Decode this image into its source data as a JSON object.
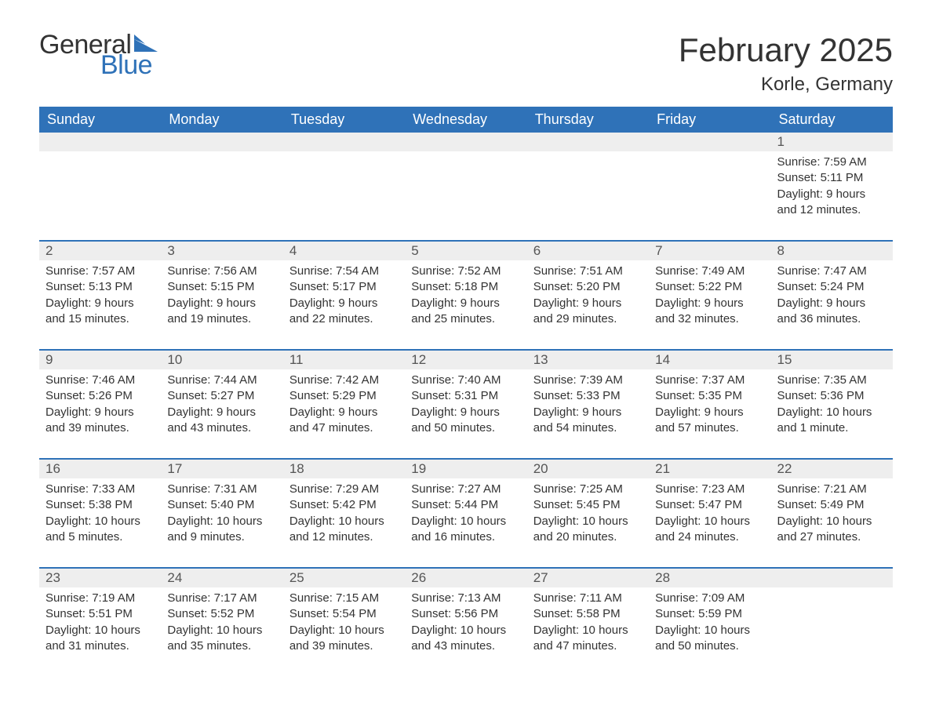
{
  "logo": {
    "word1": "General",
    "word2": "Blue",
    "tri_color": "#2f72b8",
    "text_color": "#333333"
  },
  "header": {
    "title": "February 2025",
    "location": "Korle, Germany"
  },
  "colors": {
    "header_bg": "#2f72b8",
    "header_fg": "#ffffff",
    "daynum_bg": "#eeeeee",
    "row_border": "#2f72b8",
    "text": "#333333",
    "background": "#ffffff"
  },
  "typography": {
    "title_fontsize": 42,
    "location_fontsize": 24,
    "dayheader_fontsize": 18,
    "daynum_fontsize": 17,
    "body_fontsize": 15,
    "font_family": "Segoe UI"
  },
  "day_headers": [
    "Sunday",
    "Monday",
    "Tuesday",
    "Wednesday",
    "Thursday",
    "Friday",
    "Saturday"
  ],
  "weeks": [
    [
      null,
      null,
      null,
      null,
      null,
      null,
      {
        "n": "1",
        "sunrise": "7:59 AM",
        "sunset": "5:11 PM",
        "daylight": "9 hours and 12 minutes."
      }
    ],
    [
      {
        "n": "2",
        "sunrise": "7:57 AM",
        "sunset": "5:13 PM",
        "daylight": "9 hours and 15 minutes."
      },
      {
        "n": "3",
        "sunrise": "7:56 AM",
        "sunset": "5:15 PM",
        "daylight": "9 hours and 19 minutes."
      },
      {
        "n": "4",
        "sunrise": "7:54 AM",
        "sunset": "5:17 PM",
        "daylight": "9 hours and 22 minutes."
      },
      {
        "n": "5",
        "sunrise": "7:52 AM",
        "sunset": "5:18 PM",
        "daylight": "9 hours and 25 minutes."
      },
      {
        "n": "6",
        "sunrise": "7:51 AM",
        "sunset": "5:20 PM",
        "daylight": "9 hours and 29 minutes."
      },
      {
        "n": "7",
        "sunrise": "7:49 AM",
        "sunset": "5:22 PM",
        "daylight": "9 hours and 32 minutes."
      },
      {
        "n": "8",
        "sunrise": "7:47 AM",
        "sunset": "5:24 PM",
        "daylight": "9 hours and 36 minutes."
      }
    ],
    [
      {
        "n": "9",
        "sunrise": "7:46 AM",
        "sunset": "5:26 PM",
        "daylight": "9 hours and 39 minutes."
      },
      {
        "n": "10",
        "sunrise": "7:44 AM",
        "sunset": "5:27 PM",
        "daylight": "9 hours and 43 minutes."
      },
      {
        "n": "11",
        "sunrise": "7:42 AM",
        "sunset": "5:29 PM",
        "daylight": "9 hours and 47 minutes."
      },
      {
        "n": "12",
        "sunrise": "7:40 AM",
        "sunset": "5:31 PM",
        "daylight": "9 hours and 50 minutes."
      },
      {
        "n": "13",
        "sunrise": "7:39 AM",
        "sunset": "5:33 PM",
        "daylight": "9 hours and 54 minutes."
      },
      {
        "n": "14",
        "sunrise": "7:37 AM",
        "sunset": "5:35 PM",
        "daylight": "9 hours and 57 minutes."
      },
      {
        "n": "15",
        "sunrise": "7:35 AM",
        "sunset": "5:36 PM",
        "daylight": "10 hours and 1 minute."
      }
    ],
    [
      {
        "n": "16",
        "sunrise": "7:33 AM",
        "sunset": "5:38 PM",
        "daylight": "10 hours and 5 minutes."
      },
      {
        "n": "17",
        "sunrise": "7:31 AM",
        "sunset": "5:40 PM",
        "daylight": "10 hours and 9 minutes."
      },
      {
        "n": "18",
        "sunrise": "7:29 AM",
        "sunset": "5:42 PM",
        "daylight": "10 hours and 12 minutes."
      },
      {
        "n": "19",
        "sunrise": "7:27 AM",
        "sunset": "5:44 PM",
        "daylight": "10 hours and 16 minutes."
      },
      {
        "n": "20",
        "sunrise": "7:25 AM",
        "sunset": "5:45 PM",
        "daylight": "10 hours and 20 minutes."
      },
      {
        "n": "21",
        "sunrise": "7:23 AM",
        "sunset": "5:47 PM",
        "daylight": "10 hours and 24 minutes."
      },
      {
        "n": "22",
        "sunrise": "7:21 AM",
        "sunset": "5:49 PM",
        "daylight": "10 hours and 27 minutes."
      }
    ],
    [
      {
        "n": "23",
        "sunrise": "7:19 AM",
        "sunset": "5:51 PM",
        "daylight": "10 hours and 31 minutes."
      },
      {
        "n": "24",
        "sunrise": "7:17 AM",
        "sunset": "5:52 PM",
        "daylight": "10 hours and 35 minutes."
      },
      {
        "n": "25",
        "sunrise": "7:15 AM",
        "sunset": "5:54 PM",
        "daylight": "10 hours and 39 minutes."
      },
      {
        "n": "26",
        "sunrise": "7:13 AM",
        "sunset": "5:56 PM",
        "daylight": "10 hours and 43 minutes."
      },
      {
        "n": "27",
        "sunrise": "7:11 AM",
        "sunset": "5:58 PM",
        "daylight": "10 hours and 47 minutes."
      },
      {
        "n": "28",
        "sunrise": "7:09 AM",
        "sunset": "5:59 PM",
        "daylight": "10 hours and 50 minutes."
      },
      null
    ]
  ],
  "labels": {
    "sunrise": "Sunrise: ",
    "sunset": "Sunset: ",
    "daylight": "Daylight: "
  }
}
